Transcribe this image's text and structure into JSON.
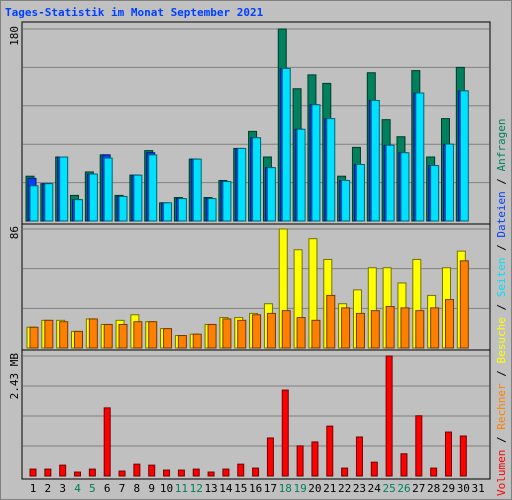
{
  "legend_separator": "/",
  "chart_data": [
    {
      "type": "bar",
      "title": "Tages-Statistik im Monat September 2021",
      "ylim": [
        0,
        180
      ],
      "yticks": [
        180
      ],
      "grid_divisions": 5,
      "series": [
        {
          "name": "Anfragen",
          "color": "#00805c",
          "values": [
            42,
            35,
            60,
            24,
            46,
            62,
            24,
            43,
            66,
            17,
            22,
            58,
            22,
            38,
            68,
            84,
            60,
            180,
            124,
            137,
            129,
            42,
            69,
            139,
            95,
            79,
            141,
            60,
            96,
            144,
            null
          ]
        },
        {
          "name": "Dateien",
          "color": "#0040ff",
          "values": [
            40,
            35,
            60,
            20,
            44,
            62,
            23,
            43,
            64,
            17,
            21,
            58,
            21,
            37,
            68,
            78,
            50,
            143,
            86,
            109,
            96,
            38,
            53,
            113,
            71,
            64,
            120,
            52,
            72,
            122,
            null
          ]
        },
        {
          "name": "Seiten",
          "color": "#00e0ff",
          "values": [
            33,
            35,
            60,
            20,
            44,
            59,
            23,
            43,
            62,
            17,
            21,
            58,
            21,
            37,
            68,
            78,
            50,
            143,
            86,
            109,
            96,
            38,
            53,
            113,
            71,
            64,
            120,
            52,
            72,
            122,
            null
          ]
        }
      ]
    },
    {
      "type": "bar",
      "ylim": [
        0,
        86
      ],
      "yticks": [
        86
      ],
      "grid_divisions": 3,
      "series": [
        {
          "name": "Besuche",
          "color": "#ffff00",
          "values": [
            15,
            20,
            20,
            12,
            21,
            17,
            20,
            24,
            19,
            14,
            9,
            10,
            17,
            22,
            22,
            25,
            32,
            86,
            71,
            79,
            64,
            32,
            42,
            58,
            58,
            47,
            64,
            38,
            58,
            70,
            null
          ]
        },
        {
          "name": "Rechner",
          "color": "#ff8000",
          "values": [
            15,
            20,
            19,
            12,
            21,
            17,
            17,
            19,
            19,
            14,
            9,
            10,
            17,
            21,
            20,
            24,
            25,
            27,
            22,
            20,
            38,
            29,
            25,
            27,
            30,
            29,
            27,
            29,
            35,
            63,
            null
          ]
        }
      ]
    },
    {
      "type": "bar",
      "ylim": [
        0,
        2.43
      ],
      "yticks": [
        {
          "value": 2.43,
          "label": "2.43 MB"
        }
      ],
      "grid_divisions": 4,
      "categories": [
        "1",
        "2",
        "3",
        "4",
        "5",
        "6",
        "7",
        "8",
        "9",
        "10",
        "11",
        "12",
        "13",
        "14",
        "15",
        "16",
        "17",
        "18",
        "19",
        "20",
        "21",
        "22",
        "23",
        "24",
        "25",
        "26",
        "27",
        "28",
        "29",
        "30",
        "31"
      ],
      "label_colors": [
        "#000000",
        "#000000",
        "#000000",
        "#00805c",
        "#00805c",
        "#000000",
        "#000000",
        "#000000",
        "#000000",
        "#000000",
        "#00805c",
        "#00805c",
        "#000000",
        "#000000",
        "#000000",
        "#000000",
        "#000000",
        "#00805c",
        "#00805c",
        "#000000",
        "#000000",
        "#000000",
        "#000000",
        "#000000",
        "#00805c",
        "#00805c",
        "#000000",
        "#000000",
        "#000000",
        "#000000",
        "#000000"
      ],
      "series": [
        {
          "name": "Volumen",
          "color": "#ff0000",
          "values": [
            0.14,
            0.14,
            0.22,
            0.08,
            0.14,
            1.38,
            0.1,
            0.24,
            0.22,
            0.12,
            0.12,
            0.14,
            0.08,
            0.14,
            0.24,
            0.16,
            0.77,
            1.74,
            0.61,
            0.69,
            1.01,
            0.16,
            0.79,
            0.28,
            2.43,
            0.45,
            1.22,
            0.16,
            0.89,
            0.81,
            null
          ]
        }
      ]
    }
  ]
}
